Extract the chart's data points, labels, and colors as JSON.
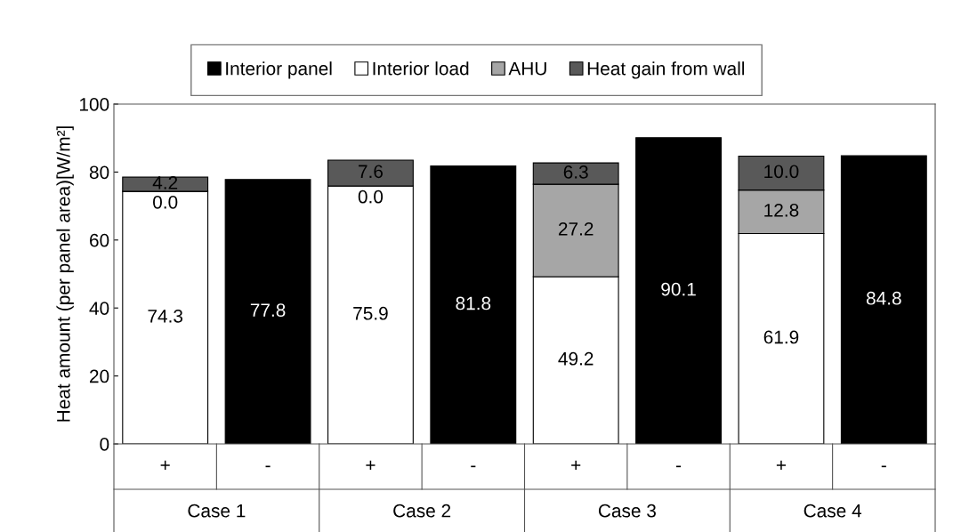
{
  "chart_data": {
    "type": "bar",
    "stacked": true,
    "ylabel": "Heat amount (per panel area)[W/m²]",
    "categories": [
      "+",
      "-",
      "+",
      "-",
      "+",
      "-",
      "+",
      "-"
    ],
    "series": [
      {
        "name": "Interior panel",
        "color": "#000000",
        "values": [
          null,
          77.8,
          null,
          81.8,
          null,
          90.1,
          null,
          84.8
        ]
      },
      {
        "name": "Interior load",
        "color": "#ffffff",
        "values": [
          74.3,
          null,
          75.9,
          null,
          49.2,
          null,
          61.9,
          null
        ]
      },
      {
        "name": "AHU",
        "color": "#a6a6a6",
        "values": [
          0.0,
          null,
          0.0,
          null,
          27.2,
          null,
          12.8,
          null
        ],
        "value_labels": [
          "0.0",
          null,
          "0.0",
          null,
          "27.2",
          null,
          "12.8",
          null
        ]
      },
      {
        "name": "Heat gain from wall",
        "color": "#595959",
        "values": [
          4.2,
          null,
          7.6,
          null,
          6.3,
          null,
          10.0,
          null
        ],
        "value_labels": [
          "4.2",
          null,
          "7.6",
          null,
          "6.3",
          null,
          "10.0",
          null
        ]
      }
    ],
    "annotations": [
      "Case 1",
      "Case 2",
      "Case 3",
      "Case 4"
    ],
    "ylim": [
      0,
      100
    ],
    "yticks": [
      0,
      20,
      40,
      60,
      80,
      100
    ],
    "grid": false,
    "legend": "top",
    "data_labels": true
  }
}
